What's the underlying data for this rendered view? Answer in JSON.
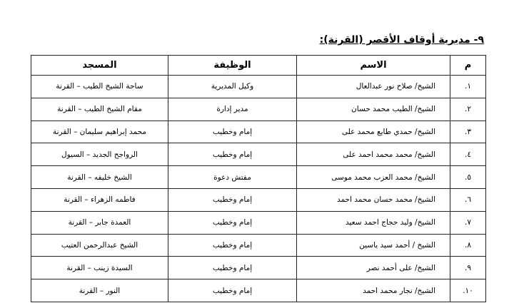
{
  "heading": "٩- مديرية أوقاف الأقصر (القرنة):",
  "table": {
    "headers": [
      "م",
      "الاسم",
      "الوظيفة",
      "المسجد"
    ],
    "rows": [
      [
        "١.",
        "الشيخ/ صلاح نور عبدالعال",
        "وكيل المديرية",
        "ساحة الشيخ الطيب – القرنة"
      ],
      [
        "٢.",
        "الشيخ/ الطيب محمد حسان",
        "مدير إدارة",
        "مقام الشيخ الطيب – القرنة"
      ],
      [
        "٣.",
        "الشيخ/ حمدي طايع محمد على",
        "إمام وخطيب",
        "محمد إبراهيم سليمان – القرنة"
      ],
      [
        "٤.",
        "الشيخ/ محمد محمد احمد على",
        "إمام وخطيب",
        "الرواجح الجديد – السيول"
      ],
      [
        "٥.",
        "الشيخ/ محمد العزب محمد موسى",
        "مفتش دعوة",
        "الشيخ خليفه – القرنة"
      ],
      [
        "٦.",
        "الشيخ/ محمد حسان محمد احمد",
        "إمام وخطيب",
        "فاطمه الزهراء – القرنة"
      ],
      [
        "٧.",
        "الشيخ/ وليد حجاج احمد سعيد",
        "إمام وخطيب",
        "العمدة جابر – القرنة"
      ],
      [
        "٨.",
        "الشيخ / أحمد سيد ياسين",
        "إمام وخطيب",
        "الشيخ عبدالرحمن العتيب"
      ],
      [
        "٩.",
        "الشيخ/ على أحمد نصر",
        "إمام وخطيب",
        "السيدة زينب – القرنة"
      ],
      [
        "١٠.",
        "الشيخ/ نجار محمد احمد",
        "إمام وخطيب",
        "النور – القرنة"
      ]
    ]
  }
}
